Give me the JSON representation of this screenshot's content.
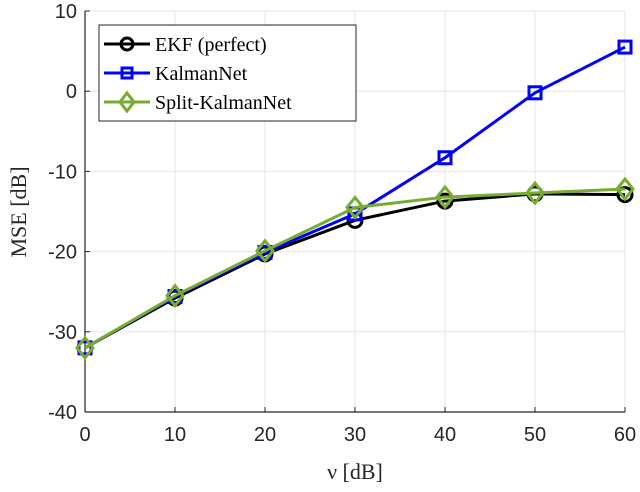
{
  "chart_data": {
    "type": "line",
    "title": "",
    "xlabel": "ν [dB]",
    "ylabel": "MSE [dB]",
    "x": [
      0,
      10,
      20,
      30,
      40,
      50,
      60
    ],
    "xlim": [
      0,
      60
    ],
    "ylim": [
      -40,
      10
    ],
    "xticks": [
      "0",
      "10",
      "20",
      "30",
      "40",
      "50",
      "60"
    ],
    "yticks": [
      "10",
      "0",
      "-10",
      "-20",
      "-30",
      "-40"
    ],
    "grid": true,
    "legend_position": "upper left",
    "series": [
      {
        "name": "EKF (perfect)",
        "color": "#000000",
        "marker": "circle",
        "values": [
          -32.0,
          -25.8,
          -20.3,
          -16.1,
          -13.7,
          -12.8,
          -12.9
        ]
      },
      {
        "name": "KalmanNet",
        "color": "#0000ff",
        "marker": "square",
        "values": [
          -32.0,
          -25.6,
          -20.1,
          -15.3,
          -8.3,
          -0.2,
          5.5
        ]
      },
      {
        "name": "Split-KalmanNet",
        "color": "#77ac30",
        "marker": "diamond",
        "values": [
          -32.0,
          -25.5,
          -19.9,
          -14.5,
          -13.2,
          -12.7,
          -12.2
        ]
      }
    ]
  }
}
